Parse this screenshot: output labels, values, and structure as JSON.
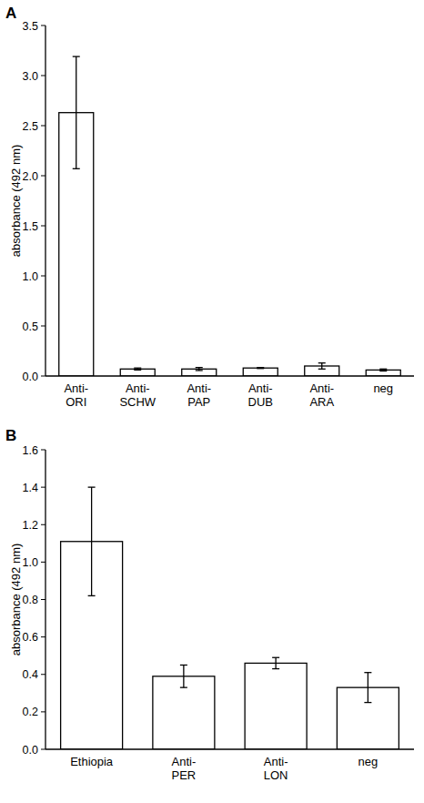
{
  "chart_data": [
    {
      "type": "bar",
      "title": "A",
      "y_label": "absorbance (492 nm)",
      "categories": [
        "Anti-ORI",
        "Anti-SCHW",
        "Anti-PAP",
        "Anti-DUB",
        "Anti-ARA",
        "neg"
      ],
      "values": [
        2.63,
        0.07,
        0.07,
        0.08,
        0.1,
        0.06
      ],
      "errors": [
        0.56,
        0.01,
        0.015,
        0.005,
        0.03,
        0.01
      ],
      "color": "#ffffff",
      "ylim": [
        0,
        3.5
      ],
      "yticks": [
        {
          "value": 0,
          "label": "0.0"
        },
        0.5,
        {
          "value": 1,
          "label": "1.0"
        },
        1.5,
        {
          "value": 2,
          "label": "2.0"
        },
        2.5,
        {
          "value": 3,
          "label": "3.0"
        },
        3.5
      ],
      "grid": false
    },
    {
      "type": "bar",
      "title": "B",
      "y_label": "absorbance (492 nm)",
      "categories": [
        "Ethiopia",
        "Anti-PER",
        "Anti-LON",
        "neg"
      ],
      "values": [
        1.11,
        0.39,
        0.46,
        0.33
      ],
      "errors": [
        0.29,
        0.06,
        0.03,
        0.08
      ],
      "color": "#ffffff",
      "ylim": [
        0,
        1.6
      ],
      "yticks": [
        {
          "value": 0,
          "label": "0.0"
        },
        0.2,
        0.4,
        0.6,
        0.8,
        {
          "value": 1,
          "label": "1.0"
        },
        1.2,
        1.4,
        1.6
      ],
      "grid": false
    }
  ]
}
